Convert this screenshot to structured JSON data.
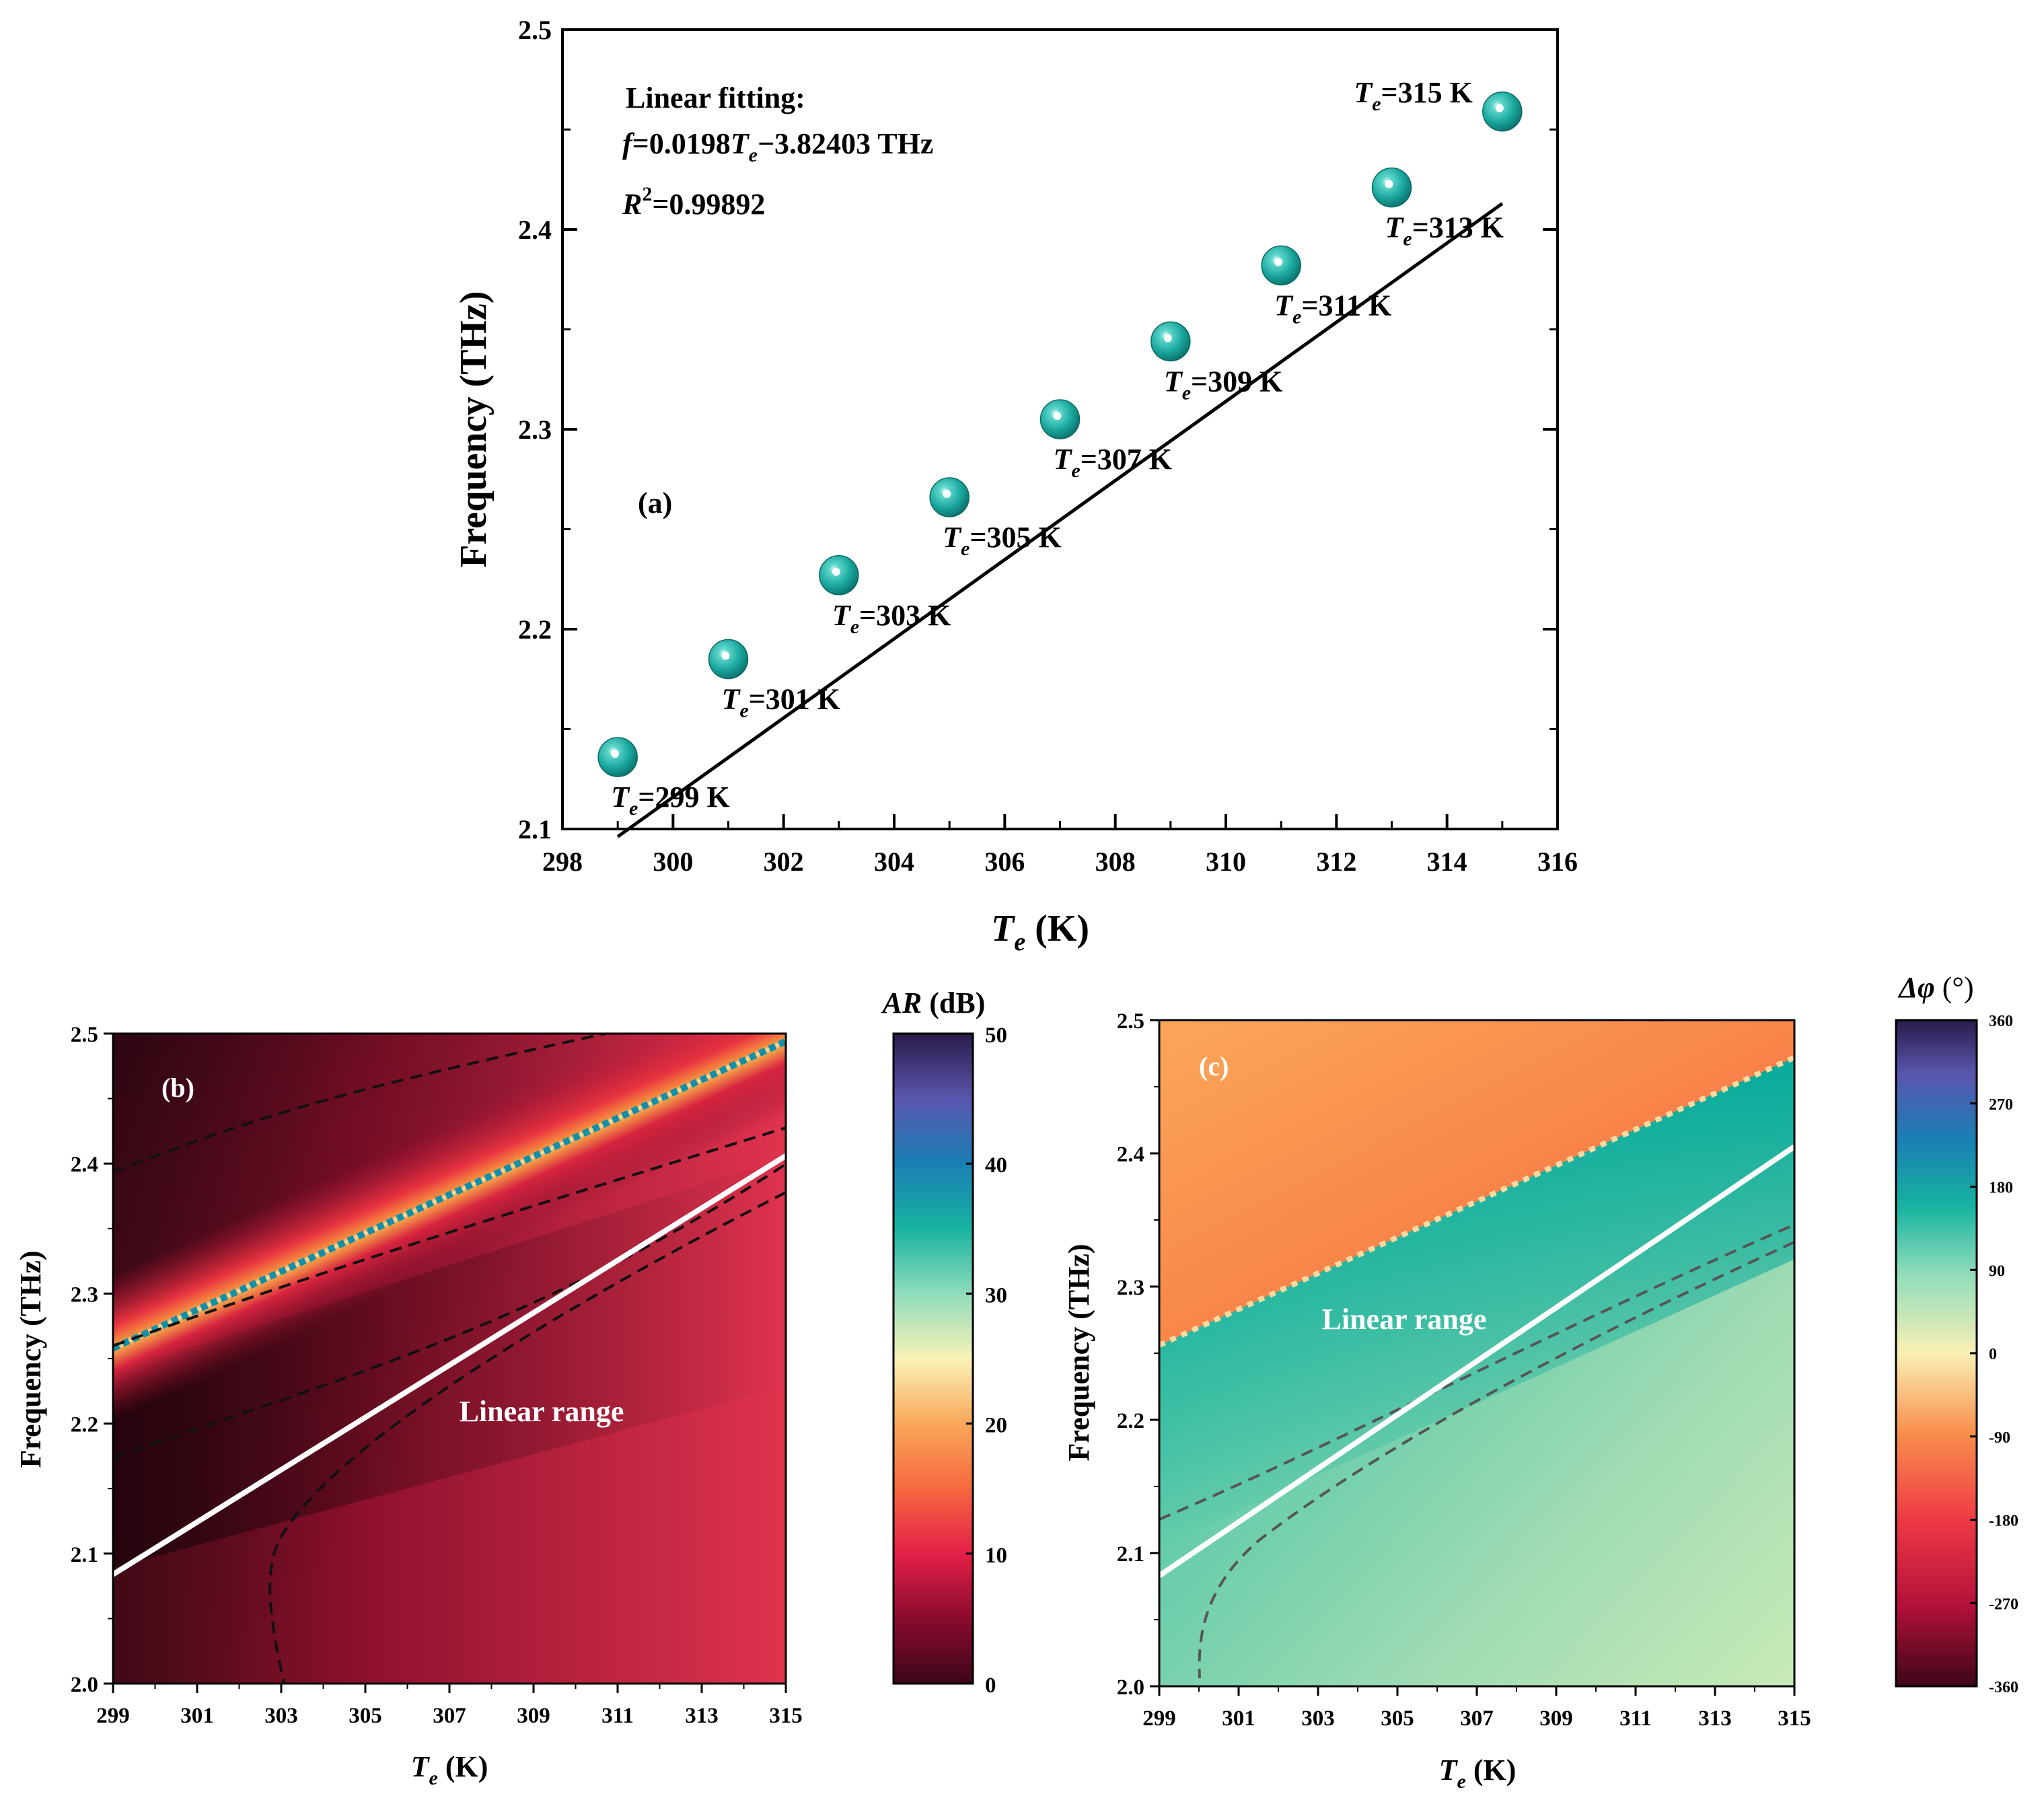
{
  "chart_data": [
    {
      "id": "a",
      "type": "scatter",
      "panel_label": "(a)",
      "xlabel": {
        "main": "T",
        "sub": "e",
        "unit": " (K)"
      },
      "ylabel": "Frequency (THz)",
      "xlim": [
        298,
        316
      ],
      "ylim": [
        2.1,
        2.5
      ],
      "xticks": [
        "298",
        "300",
        "302",
        "304",
        "306",
        "308",
        "310",
        "312",
        "314",
        "316"
      ],
      "yticks": [
        "2.1",
        "2.2",
        "2.3",
        "2.4",
        "2.5"
      ],
      "fit_title": "Linear fitting:",
      "fit_equation": {
        "lhs": "f",
        "mid": "=0.0198",
        "var": "T",
        "sub": "e",
        "rhs": "−3.82403 THz"
      },
      "r_squared": {
        "label": "R",
        "sup": "2",
        "value": "=0.99892"
      },
      "fit": {
        "slope": 0.0198,
        "intercept": -3.82403
      },
      "points": [
        {
          "x": 299,
          "y": 2.136,
          "label": "=299 K"
        },
        {
          "x": 301,
          "y": 2.185,
          "label": "=301 K"
        },
        {
          "x": 303,
          "y": 2.227,
          "label": "=303 K"
        },
        {
          "x": 305,
          "y": 2.266,
          "label": "=305 K"
        },
        {
          "x": 307,
          "y": 2.305,
          "label": "=307 K"
        },
        {
          "x": 309,
          "y": 2.344,
          "label": "=309 K"
        },
        {
          "x": 311,
          "y": 2.382,
          "label": "=311 K"
        },
        {
          "x": 313,
          "y": 2.421,
          "label": "=313 K"
        },
        {
          "x": 315,
          "y": 2.459,
          "label": "=315 K"
        }
      ],
      "colors": {
        "marker": "#1fb2a8",
        "line": "#000000"
      }
    },
    {
      "id": "b",
      "type": "heatmap",
      "panel_label": "(b)",
      "xlabel": {
        "main": "T",
        "sub": "e",
        "unit": " (K)"
      },
      "ylabel": "Frequency (THz)",
      "xlim": [
        299,
        315
      ],
      "ylim": [
        2.0,
        2.5
      ],
      "xticks": [
        "299",
        "301",
        "303",
        "305",
        "307",
        "309",
        "311",
        "313",
        "315"
      ],
      "yticks": [
        "2.0",
        "2.1",
        "2.2",
        "2.3",
        "2.4",
        "2.5"
      ],
      "annotation": "Linear range",
      "linear_range": {
        "x": [
          299,
          315
        ],
        "y": [
          2.084,
          2.406
        ]
      },
      "resonance": {
        "x": [
          299,
          315
        ],
        "y": [
          2.258,
          2.494
        ]
      },
      "colorbar": {
        "title": "AR",
        "unit": " (dB)",
        "ticks": [
          "0",
          "10",
          "20",
          "30",
          "40",
          "50"
        ],
        "range": [
          0,
          50
        ]
      }
    },
    {
      "id": "c",
      "type": "heatmap",
      "panel_label": "(c)",
      "xlabel": {
        "main": "T",
        "sub": "e",
        "unit": " (K)"
      },
      "ylabel": "Frequency (THz)",
      "xlim": [
        299,
        315
      ],
      "ylim": [
        2.0,
        2.5
      ],
      "xticks": [
        "299",
        "301",
        "303",
        "305",
        "307",
        "309",
        "311",
        "313",
        "315"
      ],
      "yticks": [
        "2.0",
        "2.1",
        "2.2",
        "2.3",
        "2.4",
        "2.5"
      ],
      "annotation": "Linear range",
      "linear_range": {
        "x": [
          299,
          315
        ],
        "y": [
          2.083,
          2.405
        ]
      },
      "phase_boundary": {
        "x": [
          299,
          315
        ],
        "y": [
          2.256,
          2.472
        ]
      },
      "colorbar": {
        "title": "Δφ",
        "unit": " (°)",
        "ticks": [
          "-360",
          "-270",
          "-180",
          "-90",
          "0",
          "90",
          "180",
          "270",
          "360"
        ],
        "range": [
          -360,
          360
        ]
      }
    }
  ]
}
